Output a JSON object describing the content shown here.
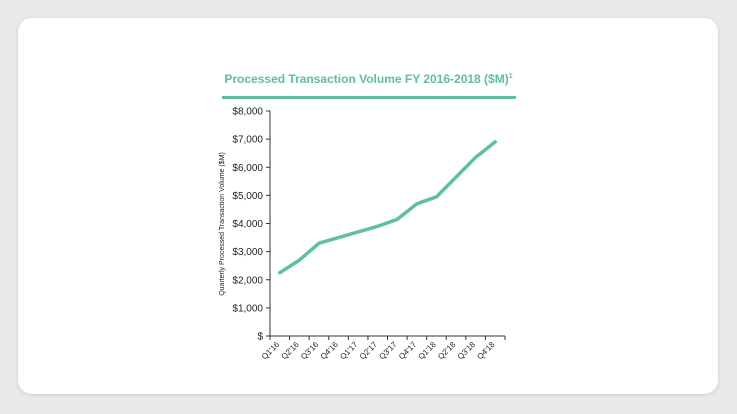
{
  "chart_data": {
    "type": "line",
    "title": "Processed Transaction Volume FY 2016-2018 ($M)",
    "title_superscript": "1",
    "xlabel": "",
    "ylabel": "Quarterly Processed Transaction Volume ($M)",
    "ylim": [
      0,
      8000
    ],
    "y_ticks": [
      0,
      1000,
      2000,
      3000,
      4000,
      5000,
      6000,
      7000,
      8000
    ],
    "y_tick_labels": [
      "$",
      "$1,000",
      "$2,000",
      "$3,000",
      "$4,000",
      "$5,000",
      "$6,000",
      "$7,000",
      "$8,000"
    ],
    "categories": [
      "Q1'16",
      "Q2'16",
      "Q3'16",
      "Q4'16",
      "Q1'17",
      "Q2'17",
      "Q3'17",
      "Q4'17",
      "Q1'18",
      "Q2'18",
      "Q3'18",
      "Q4'18"
    ],
    "series": [
      {
        "name": "Processed Transaction Volume",
        "values": [
          2250,
          2700,
          3300,
          3500,
          3700,
          3900,
          4150,
          4700,
          4950,
          5650,
          6350,
          6900
        ]
      }
    ],
    "grid": false,
    "colors": {
      "accent": "#5fbf9f",
      "axis": "#333333"
    }
  }
}
